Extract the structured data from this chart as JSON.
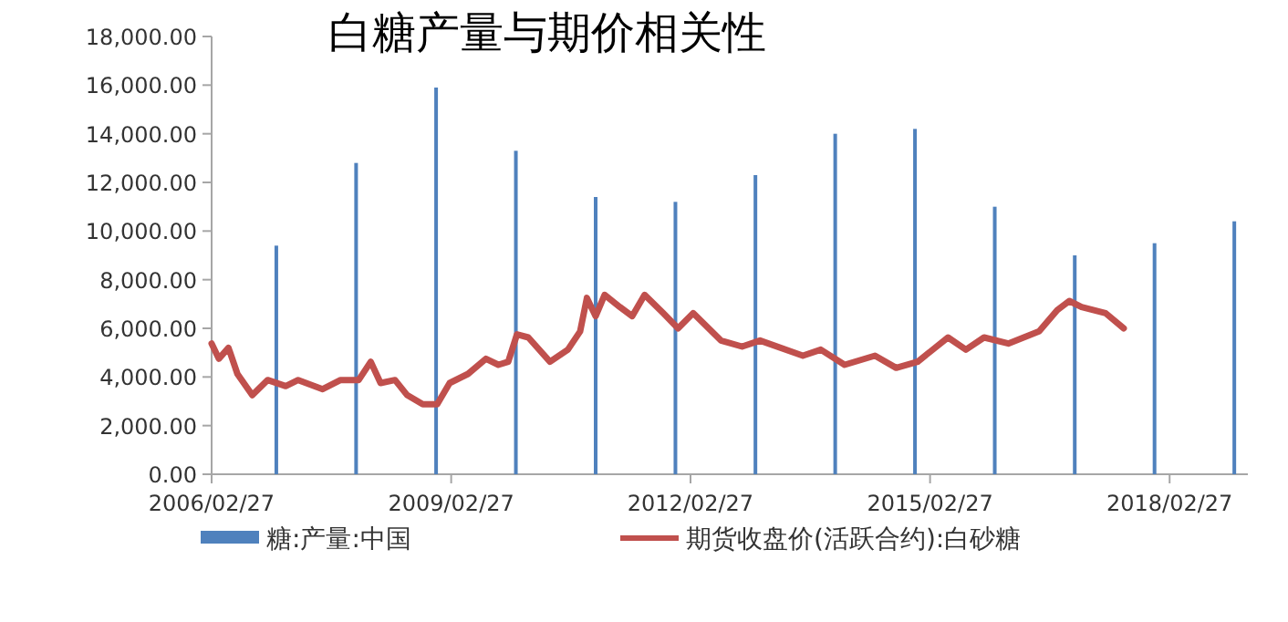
{
  "chart_data": {
    "type": "bar",
    "title": "白糖产量与期价相关性",
    "xlim": [
      "2006-02-27",
      "2019-02-20"
    ],
    "xticks": [
      {
        "value": "2006-02-27",
        "label": "2006/02/27"
      },
      {
        "value": "2009-02-27",
        "label": "2009/02/27"
      },
      {
        "value": "2012-02-27",
        "label": "2012/02/27"
      },
      {
        "value": "2015-02-27",
        "label": "2015/02/27"
      },
      {
        "value": "2018-02-27",
        "label": "2018/02/27"
      }
    ],
    "ylim": [
      0,
      18000
    ],
    "yticks": [
      {
        "value": 0,
        "label": "0.00"
      },
      {
        "value": 2000,
        "label": "2,000.00"
      },
      {
        "value": 4000,
        "label": "4,000.00"
      },
      {
        "value": 6000,
        "label": "6,000.00"
      },
      {
        "value": 8000,
        "label": "8,000.00"
      },
      {
        "value": 10000,
        "label": "10,000.00"
      },
      {
        "value": 12000,
        "label": "12,000.00"
      },
      {
        "value": 14000,
        "label": "14,000.00"
      },
      {
        "value": 16000,
        "label": "16,000.00"
      },
      {
        "value": 18000,
        "label": "18,000.00"
      }
    ],
    "legend": "bottom",
    "grid": false,
    "series": [
      {
        "name": "糖:产量:中国",
        "color": "#4f81bd",
        "x": [
          "2006-12-20",
          "2007-12-20",
          "2008-12-20",
          "2009-12-20",
          "2010-12-20",
          "2011-12-20",
          "2012-12-20",
          "2013-12-20",
          "2014-12-20",
          "2015-12-20",
          "2016-12-20",
          "2017-12-20",
          "2018-12-20"
        ],
        "values": [
          9400,
          12800,
          15900,
          13300,
          11400,
          11200,
          12300,
          14000,
          14200,
          11000,
          9000,
          9500,
          10400
        ]
      },
      {
        "name": "期货收盘价(活跃合约):白砂糖",
        "type": "line",
        "color": "#c0504d",
        "line_style": "solid",
        "marker": "none",
        "x": [
          "2006-02-27",
          "2006-04-01",
          "2006-05-15",
          "2006-06-25",
          "2006-09-01",
          "2006-11-10",
          "2007-02-01",
          "2007-03-30",
          "2007-07-20",
          "2007-10-10",
          "2008-01-01",
          "2008-02-25",
          "2008-04-10",
          "2008-06-15",
          "2008-08-10",
          "2008-10-20",
          "2008-12-25",
          "2009-02-20",
          "2009-05-15",
          "2009-08-05",
          "2009-10-01",
          "2009-11-15",
          "2009-12-25",
          "2010-02-15",
          "2010-05-25",
          "2010-08-15",
          "2010-10-10",
          "2010-11-10",
          "2010-12-20",
          "2011-01-30",
          "2011-04-10",
          "2011-06-05",
          "2011-08-01",
          "2011-10-25",
          "2012-01-01",
          "2012-03-10",
          "2012-07-15",
          "2012-10-20",
          "2013-01-10",
          "2013-07-25",
          "2013-10-15",
          "2014-02-01",
          "2014-06-20",
          "2014-09-25",
          "2015-01-01",
          "2015-05-20",
          "2015-08-10",
          "2015-11-01",
          "2016-02-20",
          "2016-07-10",
          "2016-10-01",
          "2016-11-25",
          "2017-01-20",
          "2017-05-10",
          "2017-08-01"
        ],
        "values": [
          5375,
          4750,
          5200,
          4125,
          3250,
          3875,
          3625,
          3875,
          3500,
          3875,
          3875,
          4625,
          3750,
          3875,
          3250,
          2875,
          2875,
          3750,
          4125,
          4750,
          4500,
          4625,
          5750,
          5625,
          4625,
          5125,
          5875,
          7250,
          6500,
          7375,
          6875,
          6500,
          7375,
          6625,
          6000,
          6625,
          5500,
          5250,
          5500,
          4875,
          5125,
          4500,
          4875,
          4375,
          4625,
          5625,
          5125,
          5625,
          5375,
          5875,
          6750,
          7125,
          6875,
          6625,
          6000
        ]
      }
    ]
  }
}
